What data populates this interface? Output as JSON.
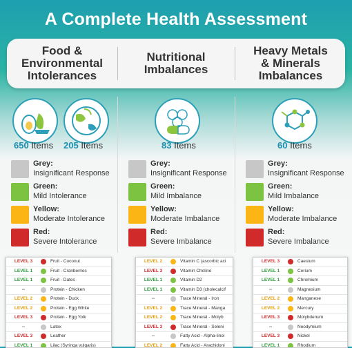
{
  "title": "A Complete Health Assessment",
  "colors": {
    "grey": "#c7c7c7",
    "green": "#7dc342",
    "yellow": "#fbb514",
    "red": "#d02a2a",
    "accent": "#1d8fb0"
  },
  "columns": [
    {
      "heading": [
        "Food &",
        "Environmental",
        "Intolerances"
      ],
      "counts": [
        {
          "num": "650",
          "label": " Items"
        },
        {
          "num": "205",
          "label": " Items"
        }
      ],
      "icons": [
        "food-icon",
        "globe-leaf-icon"
      ],
      "legend": [
        {
          "color": "grey",
          "name": "Grey:",
          "desc": "Insignificant Response"
        },
        {
          "color": "green",
          "name": "Green:",
          "desc": "Mild Intolerance"
        },
        {
          "color": "yellow",
          "name": "Yellow:",
          "desc": "Moderate Intolerance"
        },
        {
          "color": "red",
          "name": "Red:",
          "desc": "Severe Intolerance"
        }
      ],
      "rows": [
        {
          "level": "LEVEL 3",
          "color": "red",
          "item": "Fruit - Coconut"
        },
        {
          "level": "LEVEL 1",
          "color": "green",
          "item": "Fruit - Cranberries"
        },
        {
          "level": "LEVEL 1",
          "color": "green",
          "item": "Fruit - Dates"
        },
        {
          "level": "--",
          "color": "grey",
          "item": "Protein - Chicken"
        },
        {
          "level": "LEVEL 2",
          "color": "yellow",
          "item": "Protein - Duck"
        },
        {
          "level": "LEVEL 2",
          "color": "yellow",
          "item": "Protein - Egg White"
        },
        {
          "level": "LEVEL 3",
          "color": "red",
          "item": "Protein - Egg Yolk"
        },
        {
          "level": "--",
          "color": "grey",
          "item": "Latex"
        },
        {
          "level": "LEVEL 3",
          "color": "red",
          "item": "Leather"
        },
        {
          "level": "LEVEL 1",
          "color": "green",
          "item": "Lilac (Syringa vulgaris)"
        }
      ]
    },
    {
      "heading": [
        "Nutritional",
        "Imbalances"
      ],
      "counts": [
        {
          "num": "83",
          "label": " Items"
        }
      ],
      "icons": [
        "vitamin-capsule-icon"
      ],
      "legend": [
        {
          "color": "grey",
          "name": "Grey:",
          "desc": "Insignificant Response"
        },
        {
          "color": "green",
          "name": "Green:",
          "desc": "Mild Imbalance"
        },
        {
          "color": "yellow",
          "name": "Yellow:",
          "desc": "Moderate Imbalance"
        },
        {
          "color": "red",
          "name": "Red:",
          "desc": "Severe Imbalance"
        }
      ],
      "rows": [
        {
          "level": "LEVEL 2",
          "color": "yellow",
          "item": "Vitamin C (ascorbic aci"
        },
        {
          "level": "LEVEL 3",
          "color": "red",
          "item": "Vitamin Choline"
        },
        {
          "level": "LEVEL 1",
          "color": "green",
          "item": "Vitamin D2"
        },
        {
          "level": "LEVEL 1",
          "color": "green",
          "item": "Vitamin D3 (cholecalcif"
        },
        {
          "level": "--",
          "color": "grey",
          "item": "Trace Mineral - Iron"
        },
        {
          "level": "LEVEL 2",
          "color": "yellow",
          "item": "Trace Mineral - Manga"
        },
        {
          "level": "LEVEL 2",
          "color": "yellow",
          "item": "Trace Mineral - Molyb"
        },
        {
          "level": "LEVEL 3",
          "color": "red",
          "item": "Trace Mineral - Seleni"
        },
        {
          "level": "--",
          "color": "grey",
          "item": "Fatty Acid - Alpha-linol"
        },
        {
          "level": "LEVEL 2",
          "color": "yellow",
          "item": "Fatty Acid - Arachidoni"
        }
      ]
    },
    {
      "heading": [
        "Heavy Metals",
        "& Minerals",
        "Imbalances"
      ],
      "counts": [
        {
          "num": "60",
          "label": " Items"
        }
      ],
      "icons": [
        "molecule-icon"
      ],
      "legend": [
        {
          "color": "grey",
          "name": "Grey:",
          "desc": "Insignificant Response"
        },
        {
          "color": "green",
          "name": "Green:",
          "desc": "Mild Imbalance"
        },
        {
          "color": "yellow",
          "name": "Yellow:",
          "desc": "Moderate Imbalance"
        },
        {
          "color": "red",
          "name": "Red:",
          "desc": "Severe Imbalance"
        }
      ],
      "rows": [
        {
          "level": "LEVEL 3",
          "color": "red",
          "item": "Caesium"
        },
        {
          "level": "LEVEL 1",
          "color": "green",
          "item": "Cerium"
        },
        {
          "level": "LEVEL 1",
          "color": "green",
          "item": "Chromium"
        },
        {
          "level": "--",
          "color": "grey",
          "item": "Magnesium"
        },
        {
          "level": "LEVEL 2",
          "color": "yellow",
          "item": "Manganese"
        },
        {
          "level": "LEVEL 2",
          "color": "yellow",
          "item": "Mercury"
        },
        {
          "level": "LEVEL 3",
          "color": "red",
          "item": "Molybdenum"
        },
        {
          "level": "--",
          "color": "grey",
          "item": "Neodymium"
        },
        {
          "level": "LEVEL 3",
          "color": "red",
          "item": "Nickel"
        },
        {
          "level": "LEVEL 1",
          "color": "green",
          "item": "Rhodium"
        }
      ]
    }
  ]
}
